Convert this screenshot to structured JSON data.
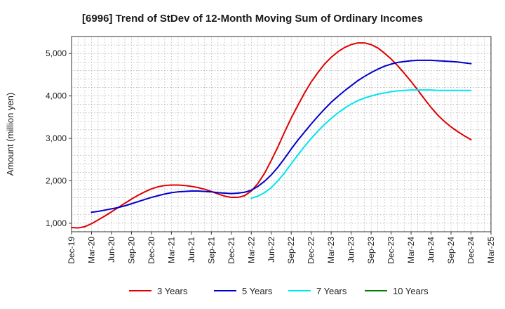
{
  "chart_data": {
    "type": "line",
    "title": "[6996]  Trend of StDev of 12-Month Moving Sum of Ordinary Incomes",
    "xlabel": "",
    "ylabel": "Amount (million yen)",
    "ylim": [
      800,
      5400
    ],
    "yticks": [
      1000,
      2000,
      3000,
      4000,
      5000
    ],
    "ytick_labels": [
      "1,000",
      "2,000",
      "3,000",
      "4,000",
      "5,000"
    ],
    "grid": true,
    "legend_position": "bottom",
    "categories": [
      "Dec-19",
      "Mar-20",
      "Jun-20",
      "Sep-20",
      "Dec-20",
      "Mar-21",
      "Jun-21",
      "Sep-21",
      "Dec-21",
      "Mar-22",
      "Jun-22",
      "Sep-22",
      "Dec-22",
      "Mar-23",
      "Jun-23",
      "Sep-23",
      "Dec-23",
      "Mar-24",
      "Jun-24",
      "Sep-24",
      "Dec-24",
      "Mar-25"
    ],
    "series": [
      {
        "name": "3 Years",
        "color": "#e00000",
        "x": [
          "Dec-19",
          "Jan-20",
          "Feb-20",
          "Mar-20",
          "Apr-20",
          "May-20",
          "Jun-20",
          "Jul-20",
          "Aug-20",
          "Sep-20",
          "Oct-20",
          "Nov-20",
          "Dec-20",
          "Jan-21",
          "Feb-21",
          "Mar-21",
          "Apr-21",
          "May-21",
          "Jun-21",
          "Jul-21",
          "Aug-21",
          "Sep-21",
          "Oct-21",
          "Nov-21",
          "Dec-21",
          "Jan-22",
          "Feb-22",
          "Mar-22",
          "Apr-22",
          "May-22",
          "Jun-22",
          "Jul-22",
          "Aug-22",
          "Sep-22",
          "Oct-22",
          "Nov-22",
          "Dec-22",
          "Jan-23",
          "Feb-23",
          "Mar-23",
          "Apr-23",
          "May-23",
          "Jun-23",
          "Jul-23",
          "Aug-23",
          "Sep-23",
          "Oct-23",
          "Nov-23",
          "Dec-23",
          "Jan-24",
          "Feb-24",
          "Mar-24",
          "Apr-24",
          "May-24",
          "Jun-24",
          "Jul-24",
          "Aug-24",
          "Sep-24",
          "Oct-24",
          "Nov-24",
          "Dec-24"
        ],
        "values": [
          900,
          890,
          920,
          990,
          1080,
          1170,
          1270,
          1370,
          1470,
          1570,
          1660,
          1740,
          1810,
          1860,
          1890,
          1900,
          1900,
          1890,
          1870,
          1840,
          1800,
          1750,
          1690,
          1640,
          1610,
          1610,
          1650,
          1760,
          1940,
          2180,
          2480,
          2800,
          3150,
          3480,
          3780,
          4070,
          4330,
          4550,
          4750,
          4910,
          5040,
          5140,
          5210,
          5250,
          5250,
          5210,
          5130,
          5010,
          4870,
          4710,
          4530,
          4340,
          4140,
          3930,
          3730,
          3550,
          3400,
          3270,
          3160,
          3060,
          2970
        ]
      },
      {
        "name": "5 Years",
        "color": "#0000cc",
        "x": [
          "Mar-20",
          "Apr-20",
          "May-20",
          "Jun-20",
          "Jul-20",
          "Aug-20",
          "Sep-20",
          "Oct-20",
          "Nov-20",
          "Dec-20",
          "Jan-21",
          "Feb-21",
          "Mar-21",
          "Apr-21",
          "May-21",
          "Jun-21",
          "Jul-21",
          "Aug-21",
          "Sep-21",
          "Oct-21",
          "Nov-21",
          "Dec-21",
          "Jan-22",
          "Feb-22",
          "Mar-22",
          "Apr-22",
          "May-22",
          "Jun-22",
          "Jul-22",
          "Aug-22",
          "Sep-22",
          "Oct-22",
          "Nov-22",
          "Dec-22",
          "Jan-23",
          "Feb-23",
          "Mar-23",
          "Apr-23",
          "May-23",
          "Jun-23",
          "Jul-23",
          "Aug-23",
          "Sep-23",
          "Oct-23",
          "Nov-23",
          "Dec-23",
          "Jan-24",
          "Feb-24",
          "Mar-24",
          "Apr-24",
          "May-24",
          "Jun-24",
          "Jul-24",
          "Aug-24",
          "Sep-24",
          "Oct-24",
          "Nov-24",
          "Dec-24"
        ],
        "values": [
          1260,
          1280,
          1310,
          1340,
          1370,
          1410,
          1460,
          1510,
          1560,
          1610,
          1650,
          1690,
          1720,
          1740,
          1750,
          1760,
          1760,
          1750,
          1740,
          1720,
          1710,
          1700,
          1710,
          1730,
          1780,
          1870,
          1990,
          2140,
          2320,
          2530,
          2750,
          2960,
          3150,
          3340,
          3520,
          3690,
          3850,
          3990,
          4120,
          4240,
          4360,
          4460,
          4550,
          4630,
          4700,
          4750,
          4790,
          4810,
          4830,
          4840,
          4840,
          4840,
          4830,
          4820,
          4810,
          4800,
          4780,
          4760
        ]
      },
      {
        "name": "7 Years",
        "color": "#00e5ee",
        "x": [
          "Mar-22",
          "Apr-22",
          "May-22",
          "Jun-22",
          "Jul-22",
          "Aug-22",
          "Sep-22",
          "Oct-22",
          "Nov-22",
          "Dec-22",
          "Jan-23",
          "Feb-23",
          "Mar-23",
          "Apr-23",
          "May-23",
          "Jun-23",
          "Jul-23",
          "Aug-23",
          "Sep-23",
          "Oct-23",
          "Nov-23",
          "Dec-23",
          "Jan-24",
          "Feb-24",
          "Mar-24",
          "Apr-24",
          "May-24",
          "Jun-24",
          "Jul-24",
          "Aug-24",
          "Sep-24",
          "Oct-24",
          "Nov-24",
          "Dec-24"
        ],
        "values": [
          1590,
          1640,
          1720,
          1840,
          2000,
          2190,
          2400,
          2610,
          2810,
          3000,
          3170,
          3330,
          3470,
          3600,
          3710,
          3810,
          3890,
          3950,
          4000,
          4040,
          4070,
          4100,
          4120,
          4130,
          4140,
          4140,
          4140,
          4140,
          4130,
          4130,
          4130,
          4130,
          4130,
          4130
        ]
      },
      {
        "name": "10 Years",
        "color": "#008000",
        "x": [],
        "values": []
      }
    ]
  }
}
